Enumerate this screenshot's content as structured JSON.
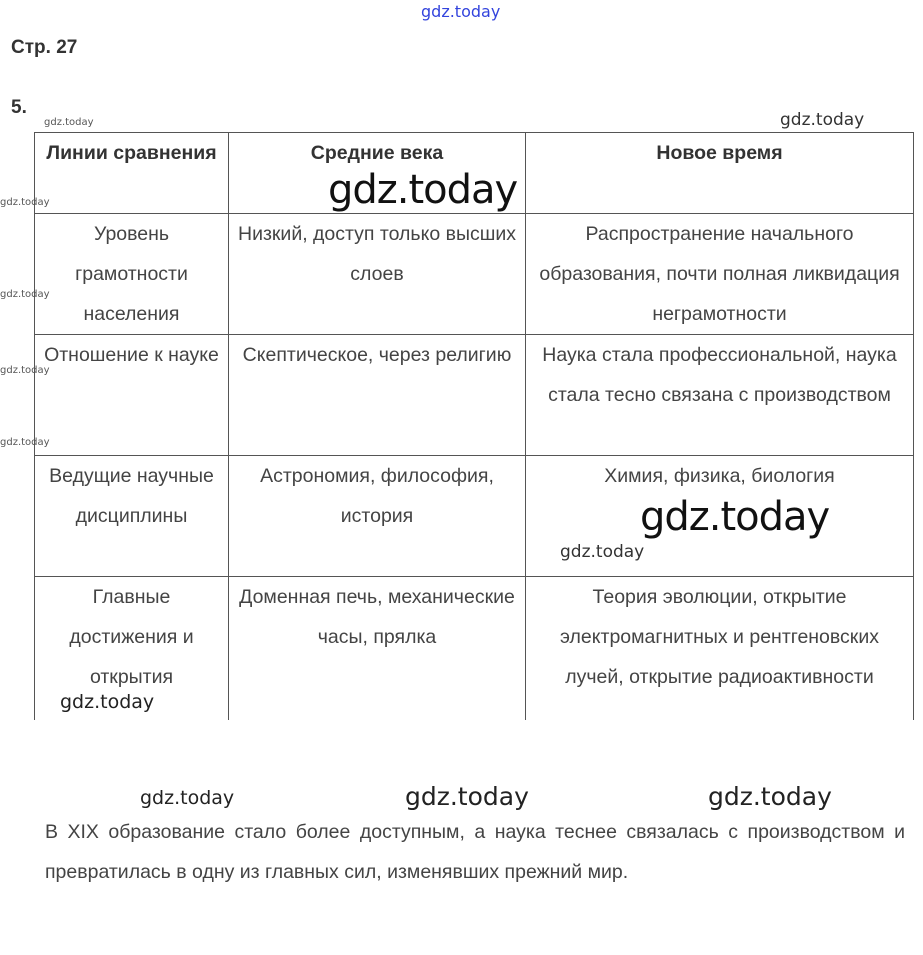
{
  "page_label": "Стр. 27",
  "task_number": "5.",
  "watermark": "gdz.today",
  "table": {
    "headers": [
      "Линии сравнения",
      "Средние века",
      "Новое время"
    ],
    "rows": [
      [
        "Уровень грамотности населения",
        "Низкий, доступ только высших слоев",
        "Распространение начального образования, почти полная ликвидация неграмотности"
      ],
      [
        "Отношение к науке",
        "Скептическое, через религию",
        "Наука стала профессиональной, наука стала тесно связана с производством"
      ],
      [
        "Ведущие научные дисциплины",
        "Астрономия, философия, история",
        "Химия, физика, биология"
      ],
      [
        "Главные достижения и открытия",
        "Доменная печь, механические часы, прялка",
        "Теория эволюции, открытие электромагнитных и рентгеновских лучей, открытие радиоактивности"
      ]
    ]
  },
  "conclusion": "В XIX образование стало более доступным, а наука теснее связалась с производством и превратилась в одну из главных сил, изменявших прежний мир."
}
